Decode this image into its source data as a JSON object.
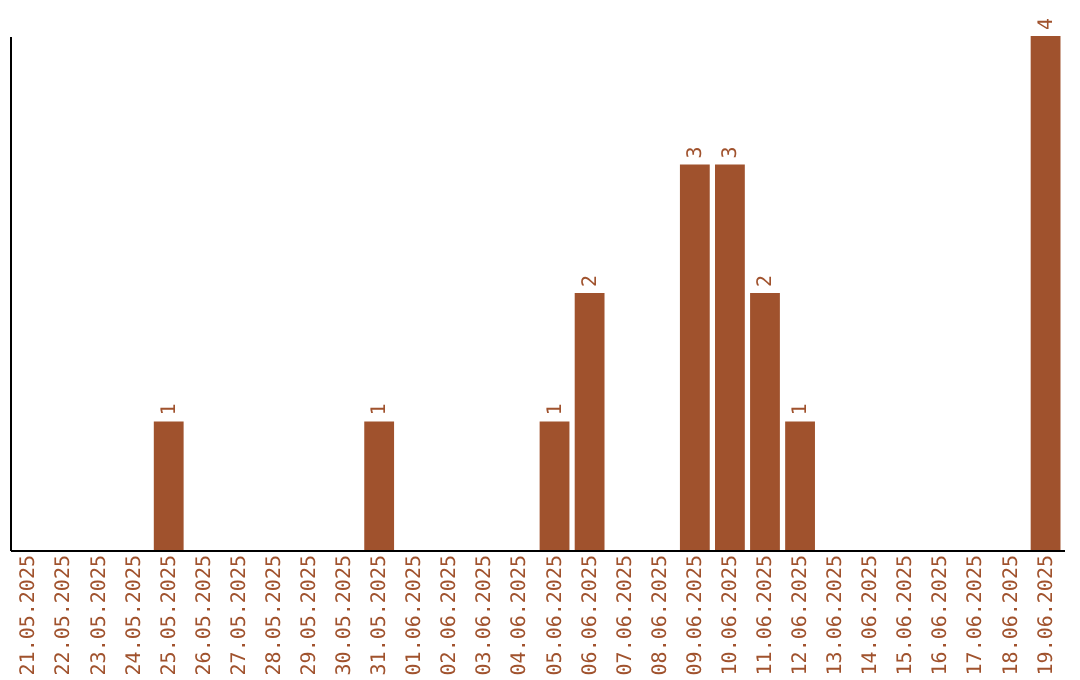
{
  "chart_data": {
    "type": "bar",
    "color": "#a0522d",
    "categories": [
      "21.05.2025",
      "22.05.2025",
      "23.05.2025",
      "24.05.2025",
      "25.05.2025",
      "26.05.2025",
      "27.05.2025",
      "28.05.2025",
      "29.05.2025",
      "30.05.2025",
      "31.05.2025",
      "01.06.2025",
      "02.06.2025",
      "03.06.2025",
      "04.06.2025",
      "05.06.2025",
      "06.06.2025",
      "07.06.2025",
      "08.06.2025",
      "09.06.2025",
      "10.06.2025",
      "11.06.2025",
      "12.06.2025",
      "13.06.2025",
      "14.06.2025",
      "15.06.2025",
      "16.06.2025",
      "17.06.2025",
      "18.06.2025",
      "19.06.2025"
    ],
    "values": [
      0,
      0,
      0,
      0,
      1,
      0,
      0,
      0,
      0,
      0,
      1,
      0,
      0,
      0,
      0,
      1,
      2,
      0,
      0,
      3,
      3,
      2,
      1,
      0,
      0,
      0,
      0,
      0,
      0,
      4
    ],
    "value_labels": [
      null,
      null,
      null,
      null,
      "1",
      null,
      null,
      null,
      null,
      null,
      "1",
      null,
      null,
      null,
      null,
      "1",
      "2",
      null,
      null,
      "3",
      "3",
      "2",
      "1",
      null,
      null,
      null,
      null,
      null,
      null,
      "4"
    ],
    "tick_labels": "x",
    "grid": false
  }
}
